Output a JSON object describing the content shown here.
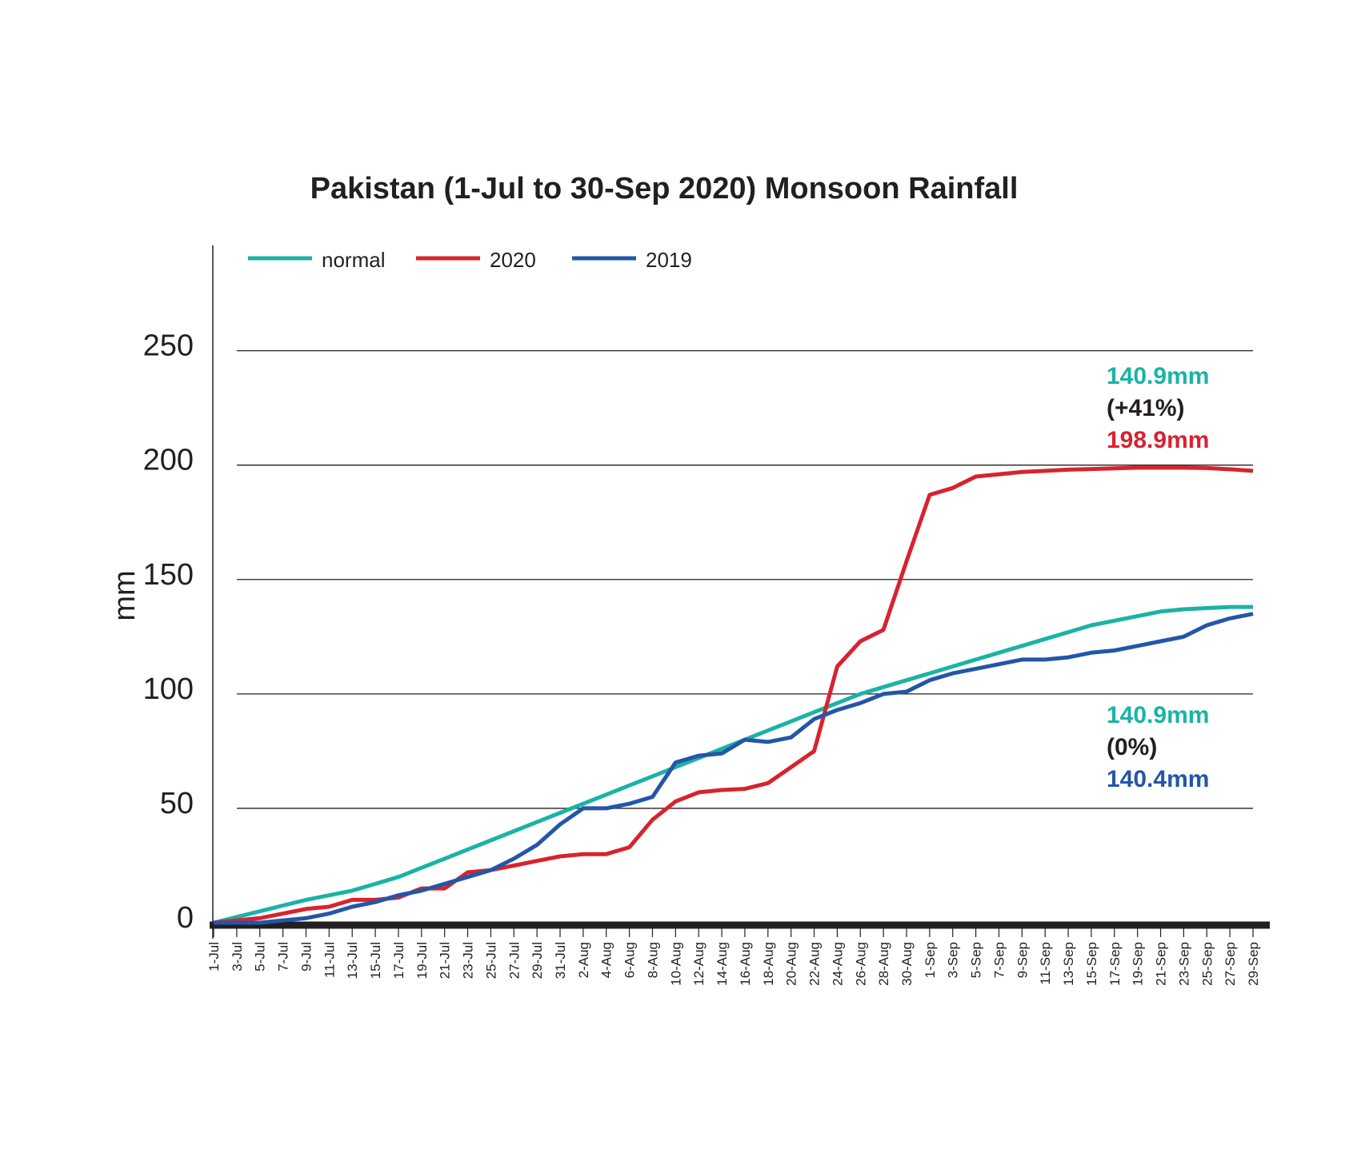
{
  "chart_data": {
    "type": "line",
    "title": "Pakistan (1-Jul to 30-Sep 2020) Monsoon Rainfall",
    "y_label": "mm",
    "categories": [
      "1-Jul",
      "3-Jul",
      "5-Jul",
      "7-Jul",
      "9-Jul",
      "11-Jul",
      "13-Jul",
      "15-Jul",
      "17-Jul",
      "19-Jul",
      "21-Jul",
      "23-Jul",
      "25-Jul",
      "27-Jul",
      "29-Jul",
      "31-Jul",
      "2-Aug",
      "4-Aug",
      "6-Aug",
      "8-Aug",
      "10-Aug",
      "12-Aug",
      "14-Aug",
      "16-Aug",
      "18-Aug",
      "20-Aug",
      "22-Aug",
      "24-Aug",
      "26-Aug",
      "28-Aug",
      "30-Aug",
      "1-Sep",
      "3-Sep",
      "5-Sep",
      "7-Sep",
      "9-Sep",
      "11-Sep",
      "13-Sep",
      "15-Sep",
      "17-Sep",
      "19-Sep",
      "21-Sep",
      "23-Sep",
      "25-Sep",
      "27-Sep",
      "29-Sep"
    ],
    "series": [
      {
        "name": "normal",
        "color": "#1ab3a6",
        "values": [
          0,
          2.5,
          5,
          7.5,
          10,
          12,
          14,
          17,
          20,
          24,
          28,
          32,
          36,
          40,
          44,
          48,
          52,
          56,
          60,
          64,
          68,
          72,
          76,
          80,
          84,
          88,
          92,
          96,
          100,
          103,
          106,
          109,
          112,
          115,
          118,
          121,
          124,
          127,
          130,
          132,
          134,
          136,
          137,
          137.5,
          138,
          138
        ]
      },
      {
        "name": "2020",
        "color": "#d7232f",
        "values": [
          0,
          1,
          2,
          4,
          6,
          7,
          10,
          10,
          11,
          15,
          15,
          22,
          23,
          25,
          27,
          29,
          30,
          30,
          33,
          45,
          53,
          57,
          58,
          58.5,
          61,
          68,
          75,
          112,
          123,
          128,
          158,
          187,
          190,
          195,
          196,
          197,
          197.5,
          198,
          198.3,
          198.6,
          198.9,
          198.9,
          198.9,
          198.7,
          198.2,
          197.5
        ]
      },
      {
        "name": "2019",
        "color": "#2356a8",
        "values": [
          0,
          0,
          0,
          1,
          2,
          4,
          7,
          9,
          12,
          14,
          17,
          20,
          23,
          28,
          34,
          43,
          50,
          50,
          52,
          55,
          70,
          73,
          74,
          80,
          79,
          81,
          89,
          93,
          96,
          100,
          101,
          106,
          109,
          111,
          113,
          115,
          115,
          116,
          118,
          119,
          121,
          123,
          125,
          130,
          133,
          135
        ]
      }
    ],
    "annotations": [
      {
        "text": "140.9mm",
        "color": "#1ab3a6"
      },
      {
        "text": "(+41%)",
        "color": "#231f20"
      },
      {
        "text": "198.9mm",
        "color": "#d7232f"
      },
      {
        "text": "140.9mm",
        "color": "#1ab3a6"
      },
      {
        "text": "(0%)",
        "color": "#231f20"
      },
      {
        "text": "140.4mm",
        "color": "#2356a8"
      }
    ],
    "ylim": [
      0,
      296
    ],
    "yticks": [
      0,
      50,
      100,
      150,
      200,
      250
    ],
    "grid": true
  }
}
